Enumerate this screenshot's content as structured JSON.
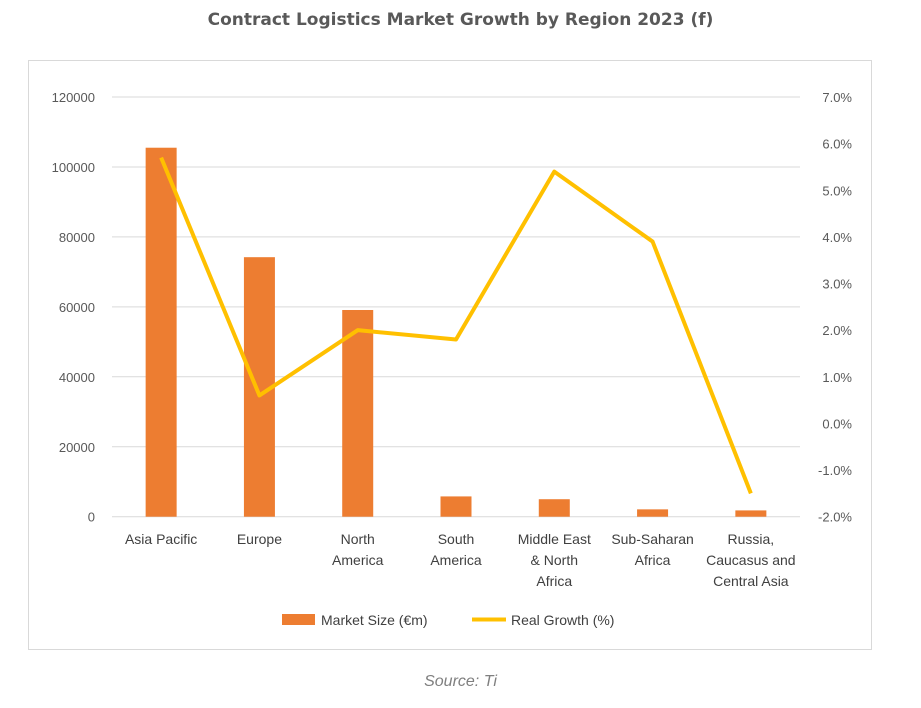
{
  "chart_data": {
    "type": "bar+line",
    "title": "Contract Logistics Market Growth by Region 2023 (f)",
    "categories": [
      [
        "Asia Pacific"
      ],
      [
        "Europe"
      ],
      [
        "North",
        "America"
      ],
      [
        "South",
        "America"
      ],
      [
        "Middle East",
        "& North",
        "Africa"
      ],
      [
        "Sub-Saharan",
        "Africa"
      ],
      [
        "Russia,",
        "Caucasus and",
        "Central Asia"
      ]
    ],
    "series": [
      {
        "name": "Market Size (€m)",
        "type": "bar",
        "axis": "left",
        "color": "#ED7D31",
        "values": [
          105500,
          74200,
          59100,
          5800,
          5000,
          2100,
          1800
        ]
      },
      {
        "name": "Real Growth (%)",
        "type": "line",
        "axis": "right",
        "color": "#FFC000",
        "values": [
          5.7,
          0.6,
          2.0,
          1.8,
          5.4,
          3.9,
          -1.5
        ]
      }
    ],
    "left_axis": {
      "ylim": [
        0,
        120000
      ],
      "ticks": [
        "0",
        "20000",
        "40000",
        "60000",
        "80000",
        "100000",
        "120000"
      ]
    },
    "right_axis": {
      "ylim": [
        -2,
        7
      ],
      "ticks": [
        "-2.0%",
        "-1.0%",
        "0.0%",
        "1.0%",
        "2.0%",
        "3.0%",
        "4.0%",
        "5.0%",
        "6.0%",
        "7.0%"
      ]
    },
    "grid": true,
    "legend": "bottom"
  },
  "source": "Source: Ti"
}
